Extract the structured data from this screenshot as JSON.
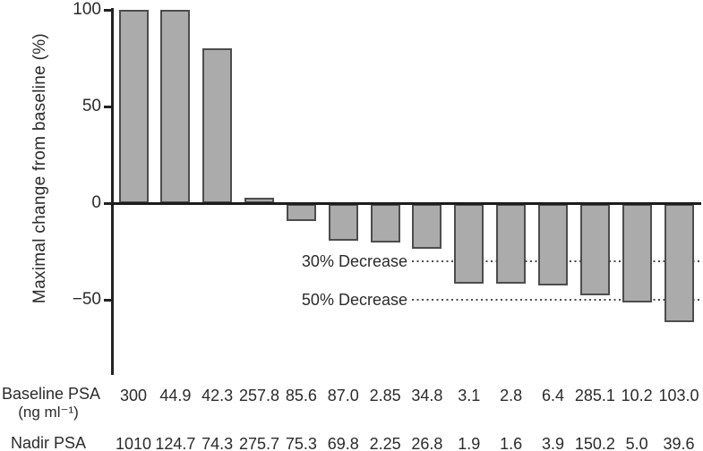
{
  "chart_data": {
    "type": "bar",
    "title": "",
    "xlabel": "",
    "ylabel": "Maximal change from baseline (%)",
    "yticks": [
      {
        "label": "100",
        "value": 100
      },
      {
        "label": "50",
        "value": 50
      },
      {
        "label": "0",
        "value": 0
      },
      {
        "label": "−50",
        "value": -50
      }
    ],
    "ylim": [
      -88,
      100
    ],
    "grid": false,
    "legend": "none",
    "bar_color": "#ababab",
    "bar_border_color": "#4d4d4d",
    "values": [
      100,
      100,
      80,
      3,
      -9,
      -19,
      -20,
      -23,
      -41,
      -41,
      -42,
      -47,
      -51,
      -61
    ],
    "reference_lines": [
      {
        "label": "30% Decrease",
        "value": -30
      },
      {
        "label": "50% Decrease",
        "value": -50
      }
    ],
    "table": {
      "rows": [
        {
          "label": "Baseline PSA",
          "sublabel": "(ng ml⁻¹)",
          "values": [
            "300",
            "44.9",
            "42.3",
            "257.8",
            "85.6",
            "87.0",
            "2.85",
            "34.8",
            "3.1",
            "2.8",
            "6.4",
            "285.1",
            "10.2",
            "103.0"
          ]
        },
        {
          "label": "Nadir PSA",
          "sublabel": "",
          "values": [
            "1010",
            "124.7",
            "74.3",
            "275.7",
            "75.3",
            "69.8",
            "2.25",
            "26.8",
            "1.9",
            "1.6",
            "3.9",
            "150.2",
            "5.0",
            "39.6"
          ]
        }
      ]
    }
  }
}
